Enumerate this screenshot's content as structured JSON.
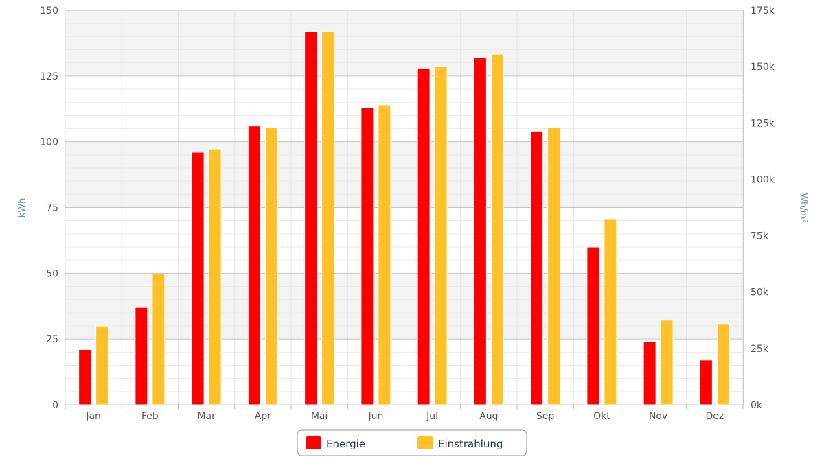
{
  "chart_data": {
    "type": "bar",
    "categories": [
      "Jan",
      "Feb",
      "Mar",
      "Apr",
      "Mai",
      "Jun",
      "Jul",
      "Aug",
      "Sep",
      "Okt",
      "Nov",
      "Dez"
    ],
    "series": [
      {
        "name": "Energie",
        "axis": "left",
        "color": "#ff0000",
        "values": [
          21,
          37,
          96,
          106,
          142,
          113,
          128,
          132,
          104,
          60,
          24,
          17
        ]
      },
      {
        "name": "Einstrahlung",
        "axis": "right",
        "color": "#ffc02a",
        "values": [
          35000,
          58000,
          113500,
          123000,
          165500,
          133000,
          150000,
          155500,
          123000,
          82500,
          37500,
          36000
        ]
      }
    ],
    "y_left": {
      "label": "kWh",
      "min": 0,
      "max": 150,
      "ticks": [
        {
          "value": 0,
          "label": "0"
        },
        {
          "value": 25,
          "label": "25"
        },
        {
          "value": 50,
          "label": "50"
        },
        {
          "value": 75,
          "label": "75"
        },
        {
          "value": 100,
          "label": "100"
        },
        {
          "value": 125,
          "label": "125"
        },
        {
          "value": 150,
          "label": "150"
        }
      ]
    },
    "y_right": {
      "label": "Wh/m²",
      "min": 0,
      "max": 175000,
      "ticks": [
        {
          "value": 0,
          "label": "0k"
        },
        {
          "value": 25000,
          "label": "25k"
        },
        {
          "value": 50000,
          "label": "50k"
        },
        {
          "value": 75000,
          "label": "75k"
        },
        {
          "value": 100000,
          "label": "100k"
        },
        {
          "value": 125000,
          "label": "125k"
        },
        {
          "value": 150000,
          "label": "150k"
        },
        {
          "value": 175000,
          "label": "175k"
        }
      ]
    },
    "grid": true,
    "legend_position": "bottom-center"
  }
}
